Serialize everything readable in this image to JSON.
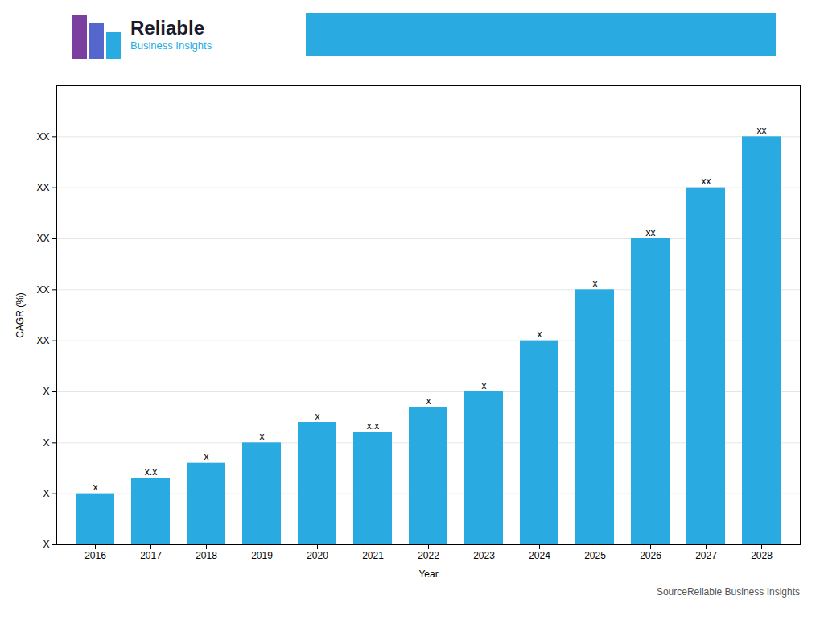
{
  "chart_data": {
    "type": "bar",
    "categories": [
      "2016",
      "2017",
      "2018",
      "2019",
      "2020",
      "2021",
      "2022",
      "2023",
      "2024",
      "2025",
      "2026",
      "2027",
      "2028"
    ],
    "values": [
      1.0,
      1.3,
      1.6,
      2.0,
      2.4,
      2.2,
      2.7,
      3.0,
      4.0,
      5.0,
      6.0,
      7.0,
      8.0
    ],
    "value_labels": [
      "x",
      "x.x",
      "x",
      "x",
      "x",
      "x.x",
      "x",
      "x",
      "x",
      "x",
      "xx",
      "xx",
      "xx"
    ],
    "data_labels": true,
    "color": "#29ABE2",
    "xlabel": "Year",
    "ylabel": "CAGR (%)",
    "ylim": [
      0,
      9
    ],
    "yticks": [
      {
        "value": 0,
        "label": "X"
      },
      {
        "value": 1,
        "label": "X"
      },
      {
        "value": 2,
        "label": "X"
      },
      {
        "value": 3,
        "label": "X"
      },
      {
        "value": 4,
        "label": "XX"
      },
      {
        "value": 5,
        "label": "XX"
      },
      {
        "value": 6,
        "label": "XX"
      },
      {
        "value": 7,
        "label": "XX"
      },
      {
        "value": 8,
        "label": "XX"
      }
    ],
    "grid": true,
    "annotations": [
      "Reliable",
      "Business Insights",
      "SourceReliable Business Insights"
    ]
  }
}
